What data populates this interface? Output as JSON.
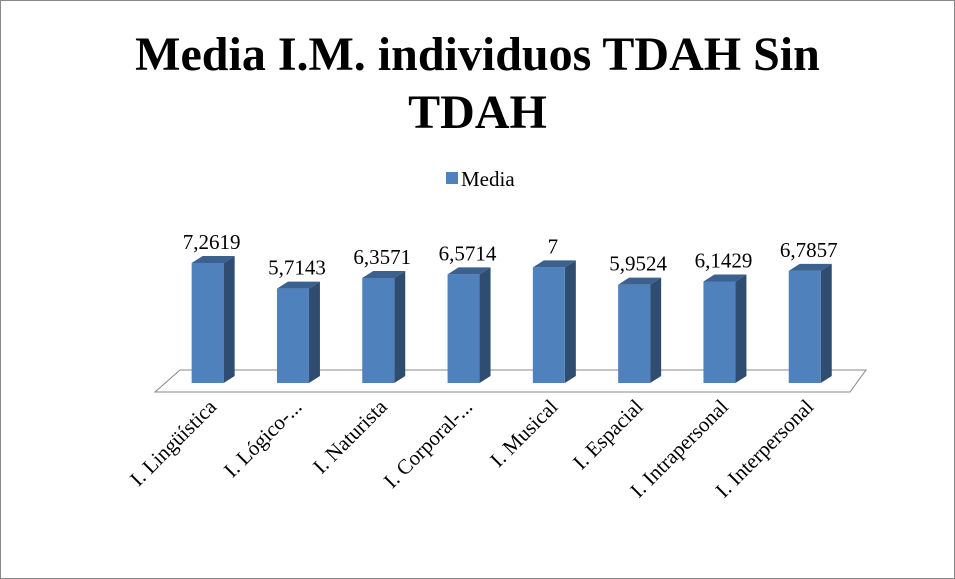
{
  "chart_data": {
    "type": "bar3d",
    "title": "Media I.M. individuos TDAH Sin TDAH",
    "categories": [
      "I. Lingüística",
      "I. Lógico-...",
      "I. Naturista",
      "I. Corporal-...",
      "I. Musical",
      "I. Espacial",
      "I. Intrapersonal",
      "I. Interpersonal"
    ],
    "series": [
      {
        "name": "Media",
        "color": "#4f81bd",
        "values": [
          7.2619,
          5.7143,
          6.3571,
          6.5714,
          7,
          5.9524,
          6.1429,
          6.7857
        ],
        "value_labels": [
          "7,2619",
          "5,7143",
          "6,3571",
          "6,5714",
          "7",
          "5,9524",
          "6,1429",
          "6,7857"
        ]
      }
    ],
    "legend": "top"
  }
}
